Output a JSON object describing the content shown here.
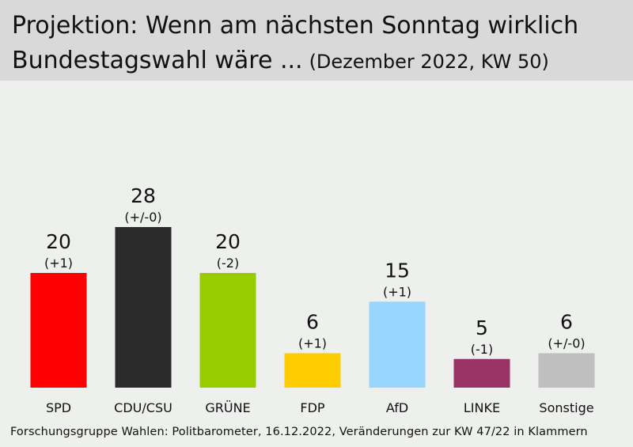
{
  "chart_data": {
    "type": "bar",
    "title_line1": "Projektion: Wenn am nächsten Sonntag wirklich",
    "title_line2": "Bundestagswahl wäre ...",
    "subtitle": "(Dezember 2022, KW 50)",
    "categories": [
      "SPD",
      "CDU/CSU",
      "GRÜNE",
      "FDP",
      "AfD",
      "LINKE",
      "Sonstige"
    ],
    "values": [
      20,
      28,
      20,
      6,
      15,
      5,
      6
    ],
    "changes": [
      "(+1)",
      "(+/-0)",
      "(-2)",
      "(+1)",
      "(+1)",
      "(-1)",
      "(+/-0)"
    ],
    "colors": [
      "#ff0000",
      "#2b2b2b",
      "#99cc00",
      "#ffcc00",
      "#99d6ff",
      "#993366",
      "#bfbfbf"
    ],
    "ylim": [
      0,
      30
    ],
    "grid": false,
    "legend": "none"
  },
  "footer": {
    "source": "Forschungsgruppe Wahlen: Politbarometer, 16.12.2022, Veränderungen zur KW 47/22 in Klammern"
  }
}
